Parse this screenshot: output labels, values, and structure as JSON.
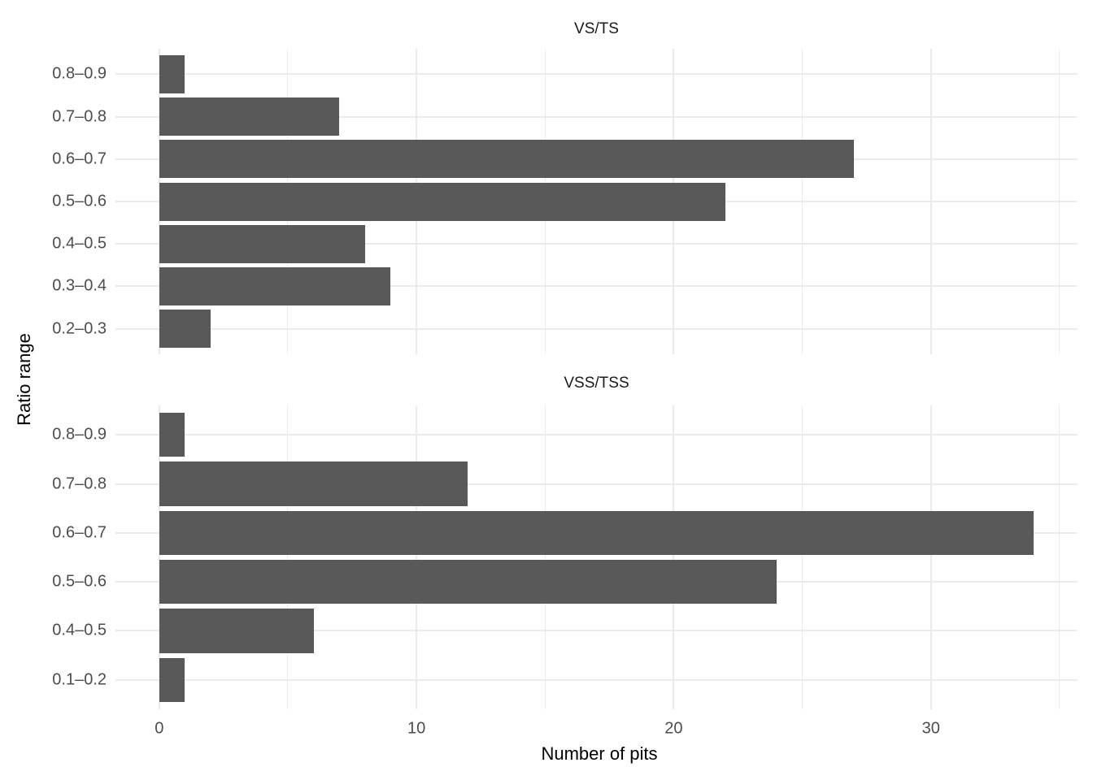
{
  "chart_data": {
    "type": "bar",
    "orientation": "horizontal",
    "xlabel": "Number of pits",
    "ylabel": "Ratio range",
    "x_ticks": [
      "0",
      "10",
      "20",
      "30"
    ],
    "x_tick_values": [
      0,
      10,
      20,
      30
    ],
    "x_minor_tick_values": [
      5,
      15,
      25,
      35
    ],
    "xlim": [
      -1.7,
      35.7
    ],
    "grid": true,
    "legend": "none",
    "facets": [
      {
        "title": "VS/TS",
        "categories": [
          "0.8–0.9",
          "0.7–0.8",
          "0.6–0.7",
          "0.5–0.6",
          "0.4–0.5",
          "0.3–0.4",
          "0.2–0.3"
        ],
        "values": [
          1,
          7,
          27,
          22,
          8,
          9,
          2
        ]
      },
      {
        "title": "VSS/TSS",
        "categories": [
          "0.8–0.9",
          "0.7–0.8",
          "0.6–0.7",
          "0.5–0.6",
          "0.4–0.5",
          "0.1–0.2"
        ],
        "values": [
          1,
          12,
          34,
          24,
          6,
          1
        ]
      }
    ],
    "colors": {
      "bar": "#595959",
      "grid": "#EBEBEB",
      "axis_text": "#4D4D4D",
      "strip_text": "#1A1A1A",
      "axis_title": "#000000",
      "background": "#FFFFFF"
    }
  }
}
